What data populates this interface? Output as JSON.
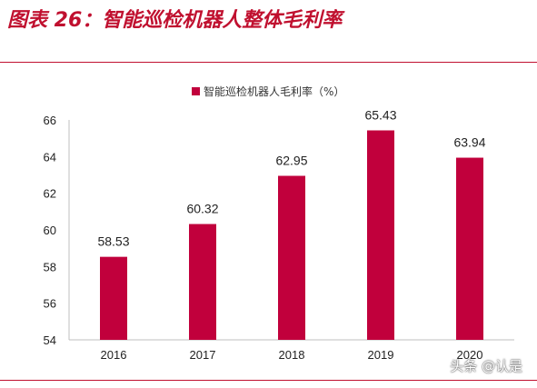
{
  "header": {
    "title": "图表 26：智能巡检机器人整体毛利率"
  },
  "watermark": "头条 @认是",
  "colors": {
    "accent": "#c0102f",
    "bar": "#c1003c"
  },
  "chart_data": {
    "type": "bar",
    "categories": [
      "2016",
      "2017",
      "2018",
      "2019",
      "2020"
    ],
    "series": [
      {
        "name": "智能巡检机器人毛利率（%）",
        "values": [
          58.53,
          60.32,
          62.95,
          65.43,
          63.94
        ],
        "labels": [
          "58.53",
          "60.32",
          "62.95",
          "65.43",
          "63.94"
        ]
      }
    ],
    "ylim": [
      54,
      66
    ],
    "yticks": [
      "54",
      "56",
      "58",
      "60",
      "62",
      "64",
      "66"
    ],
    "grid": false,
    "legend": "top-center",
    "title": "",
    "xlabel": "",
    "ylabel": ""
  }
}
